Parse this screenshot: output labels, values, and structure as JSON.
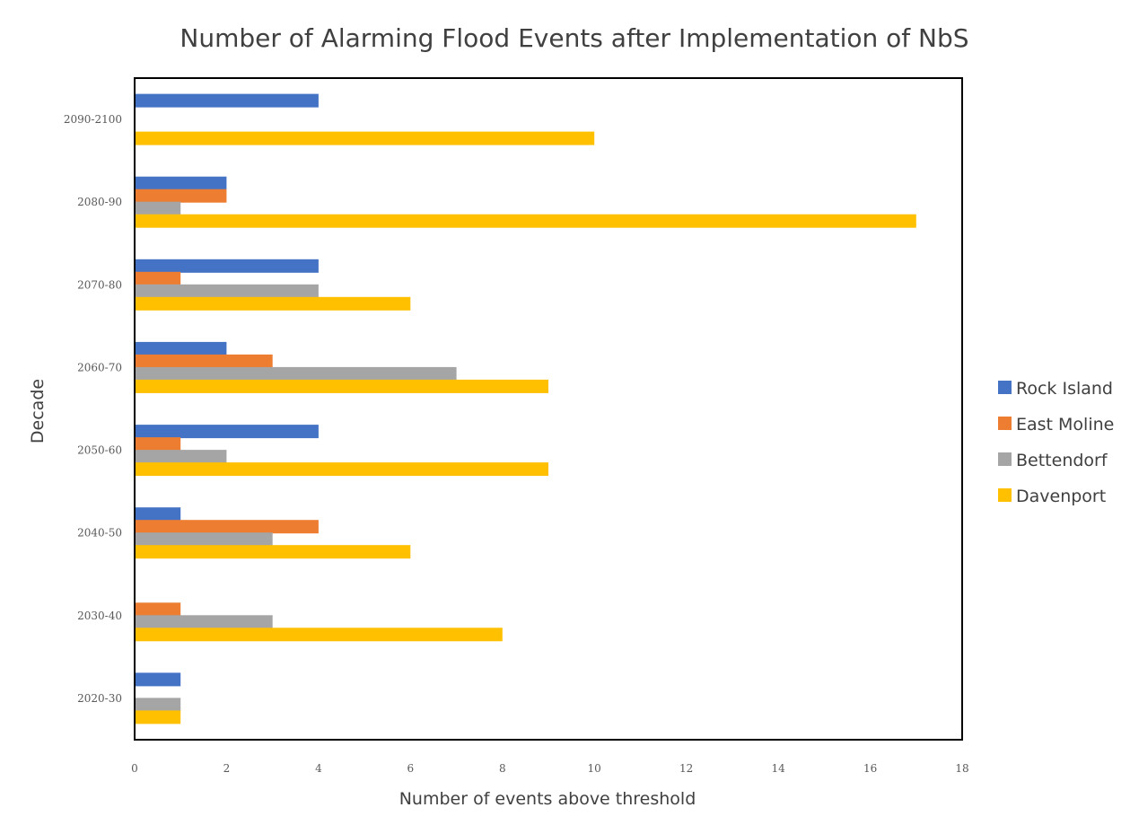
{
  "chart_data": {
    "type": "bar",
    "orientation": "horizontal",
    "title": "Number of Alarming Flood Events after Implementation of NbS",
    "xlabel": "Number of events above threshold",
    "ylabel": "Decade",
    "xlim": [
      0,
      18
    ],
    "xticks": [
      0,
      2,
      4,
      6,
      8,
      10,
      12,
      14,
      16,
      18
    ],
    "categories": [
      "2020-30",
      "2030-40",
      "2040-50",
      "2050-60",
      "2060-70",
      "2070-80",
      "2080-90",
      "2090-2100"
    ],
    "series": [
      {
        "name": "Rock Island",
        "color": "#4472C4",
        "values": [
          1,
          0,
          1,
          4,
          2,
          4,
          2,
          4
        ]
      },
      {
        "name": "East Moline",
        "color": "#ED7D31",
        "values": [
          0,
          1,
          4,
          1,
          3,
          1,
          2,
          0
        ]
      },
      {
        "name": "Bettendorf",
        "color": "#A5A5A5",
        "values": [
          1,
          3,
          3,
          2,
          7,
          4,
          1,
          0
        ]
      },
      {
        "name": "Davenport",
        "color": "#FFC000",
        "values": [
          1,
          8,
          6,
          9,
          9,
          6,
          17,
          10
        ]
      }
    ],
    "grid": false,
    "legend_position": "right"
  }
}
